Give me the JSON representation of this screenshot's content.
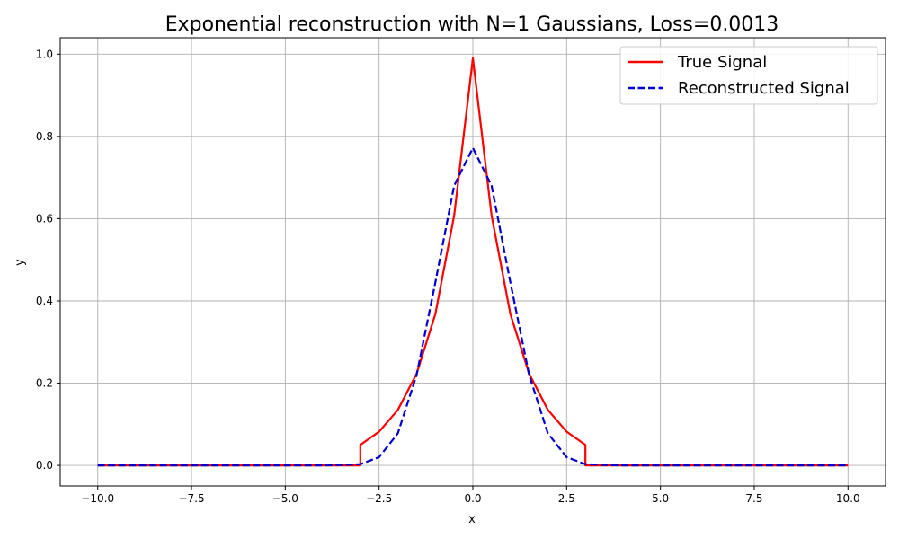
{
  "chart_data": {
    "type": "line",
    "title": "Exponential reconstruction with N=1 Gaussians, Loss=0.0013",
    "xlabel": "x",
    "ylabel": "y",
    "xlim": [
      -11.0,
      11.0
    ],
    "ylim": [
      -0.05,
      1.04
    ],
    "grid": true,
    "legend_position": "top-right",
    "x_ticks": [
      -10.0,
      -7.5,
      -5.0,
      -2.5,
      0.0,
      2.5,
      5.0,
      7.5,
      10.0
    ],
    "x_tick_labels": [
      "−10.0",
      "−7.5",
      "−5.0",
      "−2.5",
      "0.0",
      "2.5",
      "5.0",
      "7.5",
      "10.0"
    ],
    "y_ticks": [
      0.0,
      0.2,
      0.4,
      0.6,
      0.8,
      1.0
    ],
    "y_tick_labels": [
      "0.0",
      "0.2",
      "0.4",
      "0.6",
      "0.8",
      "1.0"
    ],
    "series": [
      {
        "name": "True Signal",
        "color": "#ff0000",
        "style": "solid",
        "x": [
          -10,
          -3.0,
          -3.0,
          -2.5,
          -2.0,
          -1.5,
          -1.0,
          -0.5,
          0.0,
          0.5,
          1.0,
          1.5,
          2.0,
          2.5,
          3.0,
          3.0,
          10
        ],
        "y": [
          0.0,
          0.0,
          0.05,
          0.082,
          0.135,
          0.223,
          0.368,
          0.607,
          0.99,
          0.607,
          0.368,
          0.223,
          0.135,
          0.082,
          0.05,
          0.0,
          0.0
        ]
      },
      {
        "name": "Reconstructed Signal",
        "color": "#0000cc",
        "style": "dashed",
        "x": [
          -10,
          -4.0,
          -3.5,
          -3.0,
          -2.5,
          -2.0,
          -1.5,
          -1.0,
          -0.5,
          0.0,
          0.5,
          1.0,
          1.5,
          2.0,
          2.5,
          3.0,
          3.5,
          4.0,
          10
        ],
        "y": [
          0.0,
          0.0,
          0.001,
          0.003,
          0.02,
          0.078,
          0.22,
          0.445,
          0.68,
          0.772,
          0.68,
          0.445,
          0.22,
          0.078,
          0.02,
          0.003,
          0.001,
          0.0,
          0.0
        ]
      }
    ]
  }
}
